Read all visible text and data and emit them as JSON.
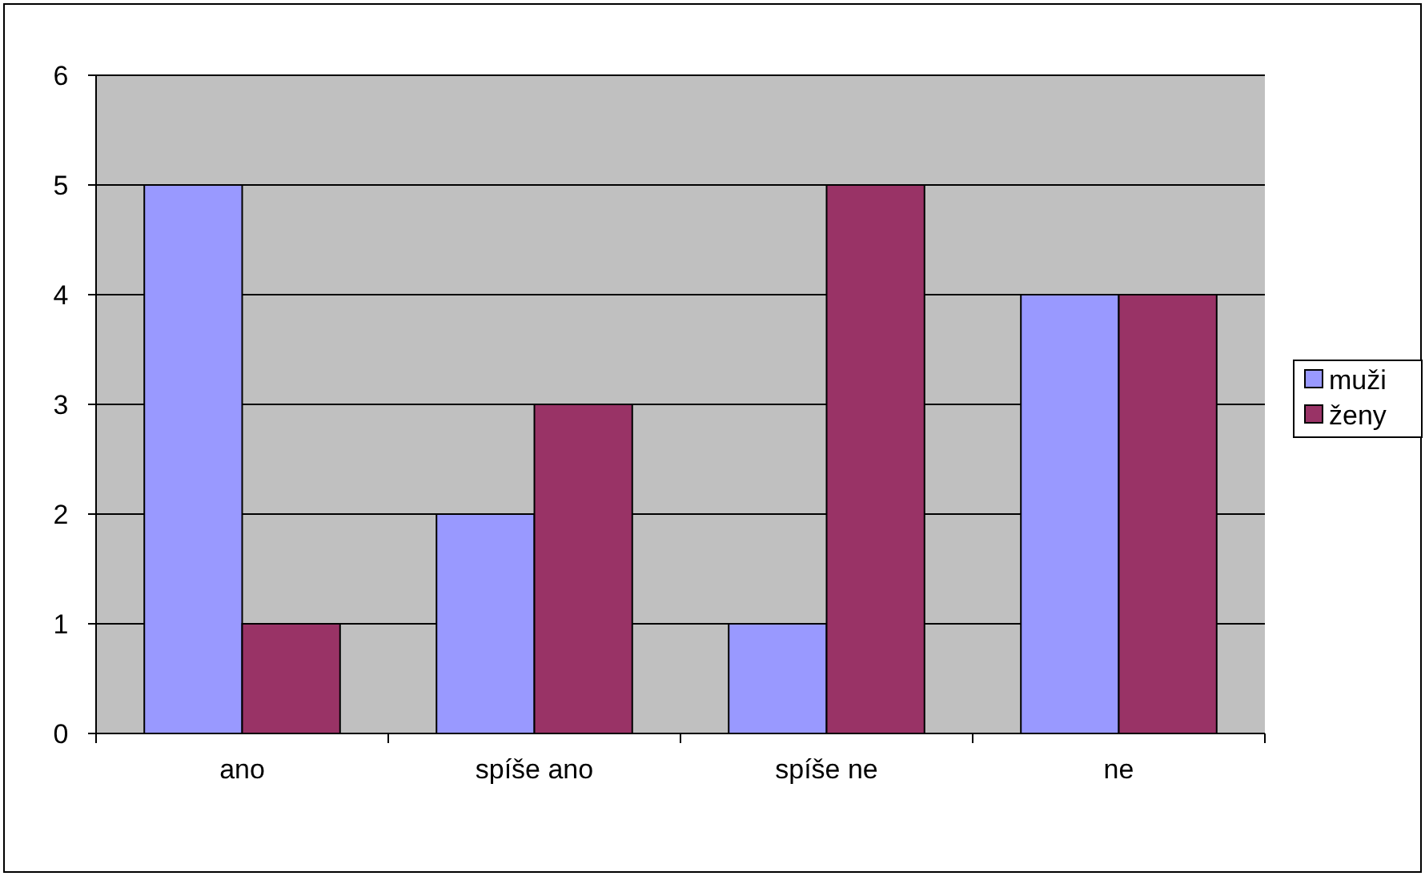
{
  "chart_data": {
    "type": "bar",
    "categories": [
      "ano",
      "spíše ano",
      "spíše ne",
      "ne"
    ],
    "series": [
      {
        "name": "muži",
        "color": "#9999ff",
        "values": [
          5,
          2,
          1,
          4
        ]
      },
      {
        "name": "ženy",
        "color": "#993366",
        "values": [
          1,
          3,
          5,
          4
        ]
      }
    ],
    "ylim": [
      0,
      6
    ],
    "yticks": [
      0,
      1,
      2,
      3,
      4,
      5,
      6
    ],
    "grid": "y",
    "legend": "right"
  }
}
